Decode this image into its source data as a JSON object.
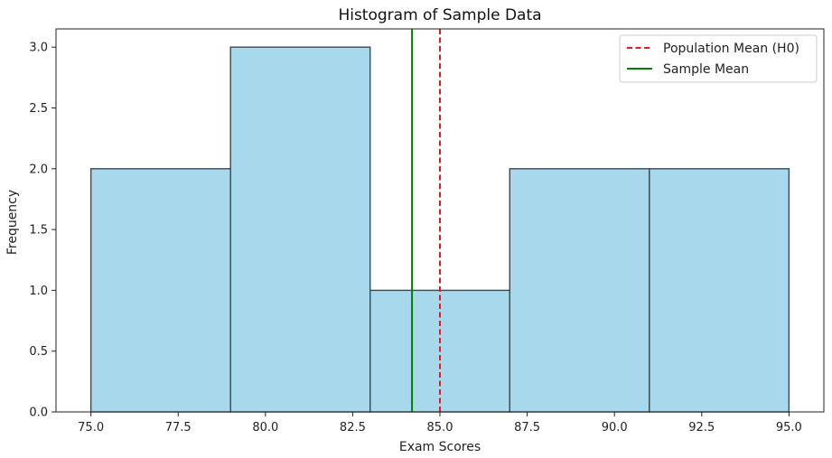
{
  "chart_data": {
    "type": "bar",
    "title": "Histogram of Sample Data",
    "xlabel": "Exam Scores",
    "ylabel": "Frequency",
    "xlim": [
      74.0,
      96.0
    ],
    "ylim": [
      0,
      3.15
    ],
    "bins": [
      {
        "start": 75,
        "end": 79,
        "value": 2
      },
      {
        "start": 79,
        "end": 83,
        "value": 3
      },
      {
        "start": 83,
        "end": 87,
        "value": 1
      },
      {
        "start": 87,
        "end": 91,
        "value": 2
      },
      {
        "start": 91,
        "end": 95,
        "value": 2
      }
    ],
    "xticks": [
      75.0,
      77.5,
      80.0,
      82.5,
      85.0,
      87.5,
      90.0,
      92.5,
      95.0
    ],
    "xtick_labels": [
      "75.0",
      "77.5",
      "80.0",
      "82.5",
      "85.0",
      "87.5",
      "90.0",
      "92.5",
      "95.0"
    ],
    "yticks": [
      0.0,
      0.5,
      1.0,
      1.5,
      2.0,
      2.5,
      3.0
    ],
    "ytick_labels": [
      "0.0",
      "0.5",
      "1.0",
      "1.5",
      "2.0",
      "2.5",
      "3.0"
    ],
    "vlines": [
      {
        "name": "Population Mean (H0)",
        "x": 85.0,
        "color": "#e41a1c",
        "style": "dashed"
      },
      {
        "name": "Sample Mean",
        "x": 84.2,
        "color": "#008000",
        "style": "solid"
      }
    ],
    "bar_color": "#a8d8ec",
    "bar_edge_color": "#3a4a50",
    "legend_position": "top-right",
    "grid": false
  }
}
